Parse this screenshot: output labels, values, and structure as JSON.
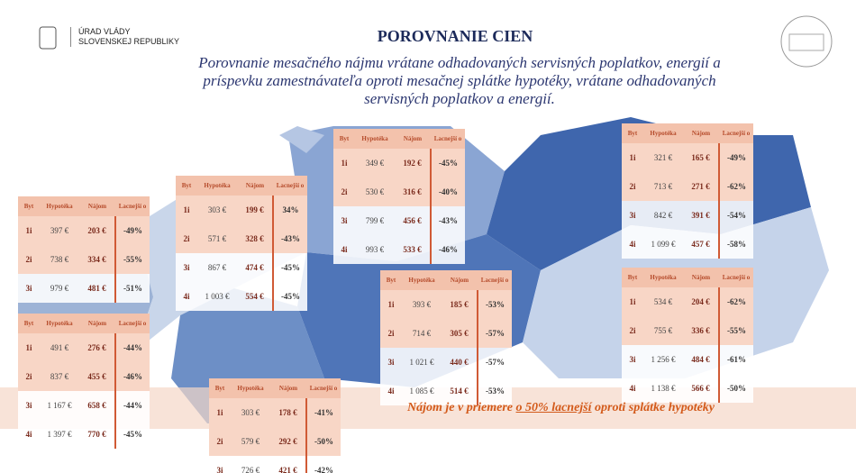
{
  "header": {
    "logo_line1": "ÚRAD VLÁDY",
    "logo_line2": "SLOVENSKEJ REPUBLIKY",
    "title": "POROVNANIE CIEN",
    "subtitle": "Porovnanie mesačného nájmu vrátane odhadovaných servisných poplatkov, energií a príspevku zamestnávateľa oproti mesačnej splátke hypotéky, vrátane odhadovaných servisných poplatkov a energií."
  },
  "tables": [
    {
      "header": [
        "Byt",
        "Hypotéka",
        "Nájom",
        "Lacnejší o"
      ],
      "rows": [
        [
          "1i",
          "397 €",
          "203 €",
          "-49%"
        ],
        [
          "2i",
          "738 €",
          "334 €",
          "-55%"
        ],
        [
          "3i",
          "979 €",
          "481 €",
          "-51%"
        ]
      ]
    },
    {
      "header": [
        "Byt",
        "Hypotéka",
        "Nájom",
        "Lacnejší o"
      ],
      "rows": [
        [
          "1i",
          "303 €",
          "199 €",
          "34%"
        ],
        [
          "2i",
          "571 €",
          "328 €",
          "-43%"
        ],
        [
          "3i",
          "867 €",
          "474 €",
          "-45%"
        ],
        [
          "4i",
          "1 003 €",
          "554 €",
          "-45%"
        ]
      ]
    },
    {
      "header": [
        "Byt",
        "Hypotéka",
        "Nájom",
        "Lacnejší o"
      ],
      "rows": [
        [
          "1i",
          "349 €",
          "192 €",
          "-45%"
        ],
        [
          "2i",
          "530 €",
          "316 €",
          "-40%"
        ],
        [
          "3i",
          "799 €",
          "456 €",
          "-43%"
        ],
        [
          "4i",
          "993 €",
          "533 €",
          "-46%"
        ]
      ]
    },
    {
      "header": [
        "Byt",
        "Hypotéka",
        "Nájom",
        "Lacnejší o"
      ],
      "rows": [
        [
          "1i",
          "321 €",
          "165 €",
          "-49%"
        ],
        [
          "2i",
          "713 €",
          "271 €",
          "-62%"
        ],
        [
          "3i",
          "842 €",
          "391 €",
          "-54%"
        ],
        [
          "4i",
          "1 099 €",
          "457 €",
          "-58%"
        ]
      ]
    },
    {
      "header": [
        "Byt",
        "Hypotéka",
        "Nájom",
        "Lacnejší o"
      ],
      "rows": [
        [
          "1i",
          "491 €",
          "276 €",
          "-44%"
        ],
        [
          "2i",
          "837 €",
          "455 €",
          "-46%"
        ],
        [
          "3i",
          "1 167 €",
          "658 €",
          "-44%"
        ],
        [
          "4i",
          "1 397 €",
          "770 €",
          "-45%"
        ]
      ]
    },
    {
      "header": [
        "Byt",
        "Hypotéka",
        "Nájom",
        "Lacnejší o"
      ],
      "rows": [
        [
          "1i",
          "393 €",
          "185 €",
          "-53%"
        ],
        [
          "2i",
          "714 €",
          "305 €",
          "-57%"
        ],
        [
          "3i",
          "1 021 €",
          "440 €",
          "-57%"
        ],
        [
          "4i",
          "1 085 €",
          "514 €",
          "-53%"
        ]
      ]
    },
    {
      "header": [
        "Byt",
        "Hypotéka",
        "Nájom",
        "Lacnejší o"
      ],
      "rows": [
        [
          "1i",
          "534 €",
          "204 €",
          "-62%"
        ],
        [
          "2i",
          "755 €",
          "336 €",
          "-55%"
        ],
        [
          "3i",
          "1 256 €",
          "484 €",
          "-61%"
        ],
        [
          "4i",
          "1 138 €",
          "566 €",
          "-50%"
        ]
      ]
    },
    {
      "header": [
        "Byt",
        "Hypotéka",
        "Nájom",
        "Lacnejší o"
      ],
      "rows": [
        [
          "1i",
          "303 €",
          "178 €",
          "-41%"
        ],
        [
          "2i",
          "579 €",
          "292 €",
          "-50%"
        ],
        [
          "3i",
          "726 €",
          "421 €",
          "-42%"
        ]
      ]
    }
  ],
  "banner": {
    "part1": "Nájom je v priemere ",
    "part2": "o 50% lacnejší",
    "part3": " oproti splátke hypotéky"
  }
}
